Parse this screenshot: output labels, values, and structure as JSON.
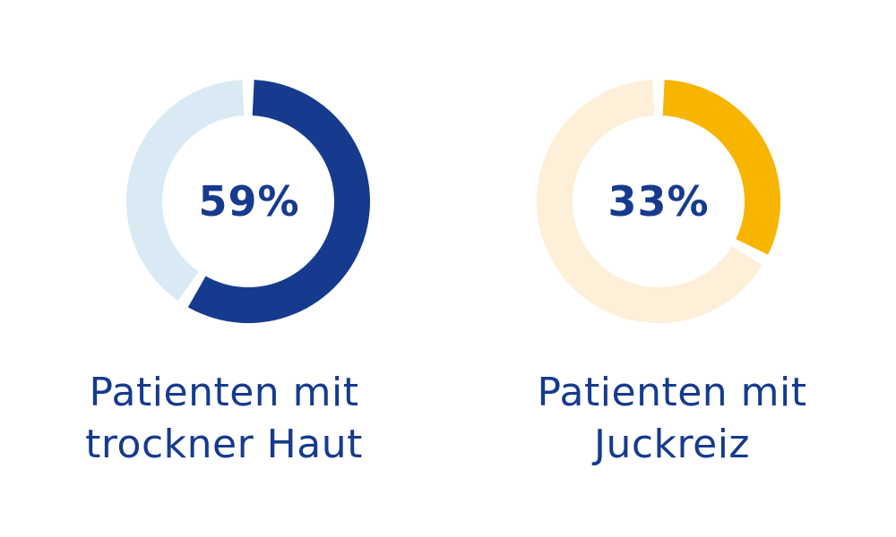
{
  "chart_data": [
    {
      "type": "pie",
      "value": 59,
      "value_label": "59%",
      "caption_lines": [
        "Patienten mit",
        "trockner Haut"
      ],
      "colors": {
        "filled": "#163B8E",
        "remainder": "#D9EAF5",
        "text": "#163B8E"
      }
    },
    {
      "type": "pie",
      "value": 33,
      "value_label": "33%",
      "caption_lines": [
        "Patienten mit",
        "Juckreiz"
      ],
      "colors": {
        "filled": "#F7B500",
        "remainder": "#FDEFD8",
        "text": "#163B8E"
      }
    }
  ]
}
